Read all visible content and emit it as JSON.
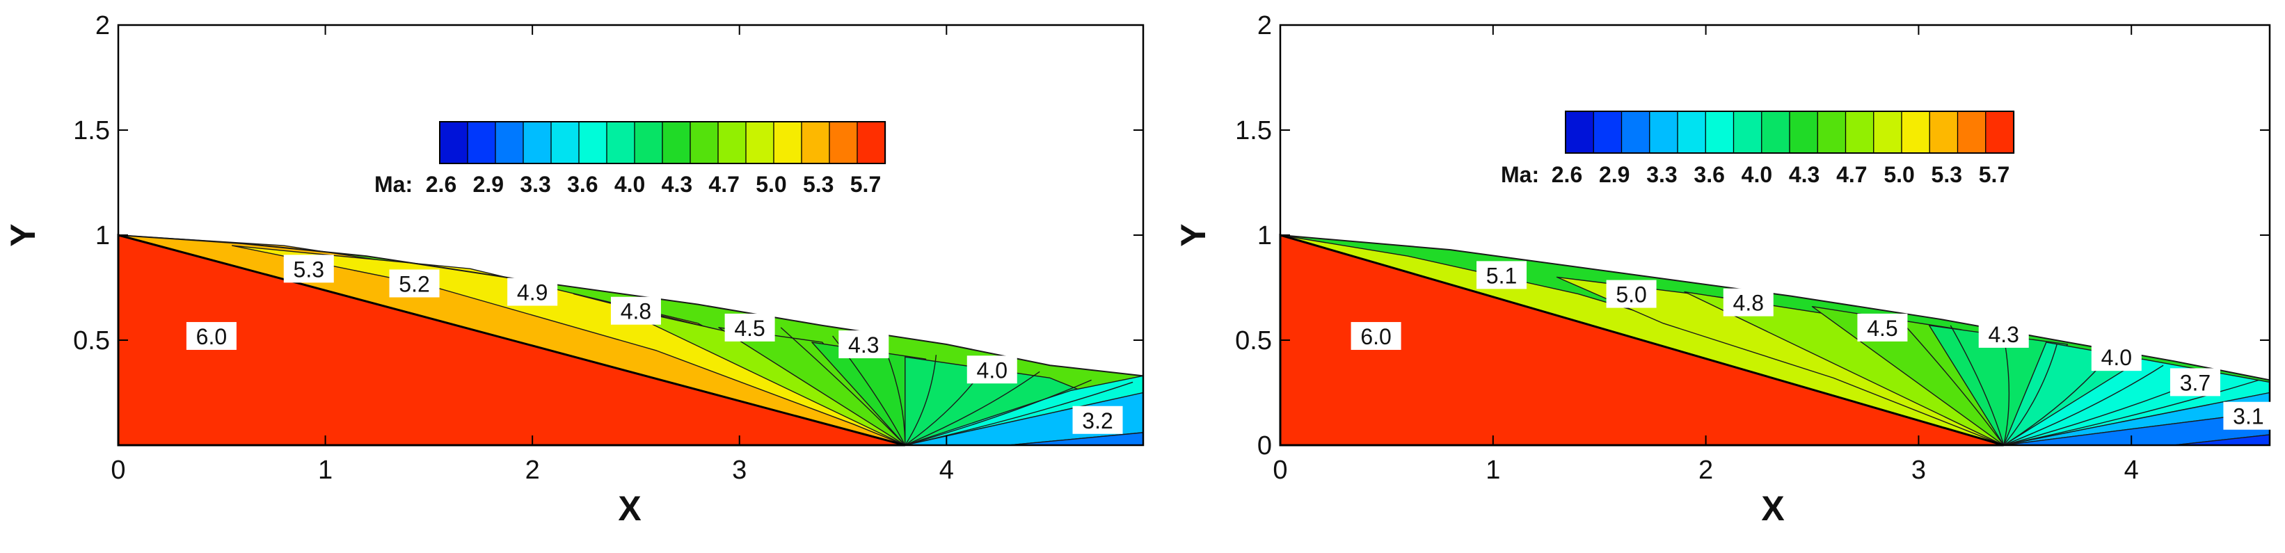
{
  "figure": {
    "x_title": "X",
    "y_title": "Y"
  },
  "colorbar": {
    "prefix": "Ma:",
    "ticks": [
      "2.6",
      "2.9",
      "3.3",
      "3.6",
      "4.0",
      "4.3",
      "4.7",
      "5.0",
      "5.3",
      "5.7"
    ],
    "vmin": 2.5,
    "vmax": 6.0,
    "levels": 16
  },
  "chart_data": [
    {
      "type": "heatmap",
      "panel": "left",
      "xlabel": "X",
      "ylabel": "Y",
      "xlim": [
        0,
        4.95
      ],
      "ylim": [
        0,
        2
      ],
      "xticks": [
        "0",
        "1",
        "2",
        "3",
        "4"
      ],
      "yticks": [
        "0.5",
        "1",
        "1.5",
        "2"
      ],
      "wedge_tip_x": 3.8,
      "freestream_mach": 6.0,
      "contour_labels": [
        {
          "text": "6.0",
          "x": 0.45,
          "y": 0.52
        },
        {
          "text": "5.3",
          "x": 0.92,
          "y": 0.84
        },
        {
          "text": "5.2",
          "x": 1.43,
          "y": 0.77
        },
        {
          "text": "4.9",
          "x": 2.0,
          "y": 0.73
        },
        {
          "text": "4.8",
          "x": 2.5,
          "y": 0.64
        },
        {
          "text": "4.5",
          "x": 3.05,
          "y": 0.56
        },
        {
          "text": "4.3",
          "x": 3.6,
          "y": 0.48
        },
        {
          "text": "4.0",
          "x": 4.22,
          "y": 0.36
        },
        {
          "text": "3.2",
          "x": 4.73,
          "y": 0.12
        }
      ]
    },
    {
      "type": "heatmap",
      "panel": "right",
      "xlabel": "X",
      "ylabel": "Y",
      "xlim": [
        0,
        4.65
      ],
      "ylim": [
        0,
        2
      ],
      "xticks": [
        "0",
        "1",
        "2",
        "3",
        "4"
      ],
      "yticks": [
        "0",
        "0.5",
        "1",
        "1.5",
        "2"
      ],
      "wedge_tip_x": 3.4,
      "freestream_mach": 6.0,
      "contour_labels": [
        {
          "text": "6.0",
          "x": 0.45,
          "y": 0.52
        },
        {
          "text": "5.1",
          "x": 1.04,
          "y": 0.81
        },
        {
          "text": "5.0",
          "x": 1.65,
          "y": 0.72
        },
        {
          "text": "4.8",
          "x": 2.2,
          "y": 0.68
        },
        {
          "text": "4.5",
          "x": 2.83,
          "y": 0.56
        },
        {
          "text": "4.3",
          "x": 3.4,
          "y": 0.53
        },
        {
          "text": "4.0",
          "x": 3.93,
          "y": 0.42
        },
        {
          "text": "3.7",
          "x": 4.3,
          "y": 0.3
        },
        {
          "text": "3.1",
          "x": 4.55,
          "y": 0.14
        }
      ]
    }
  ]
}
